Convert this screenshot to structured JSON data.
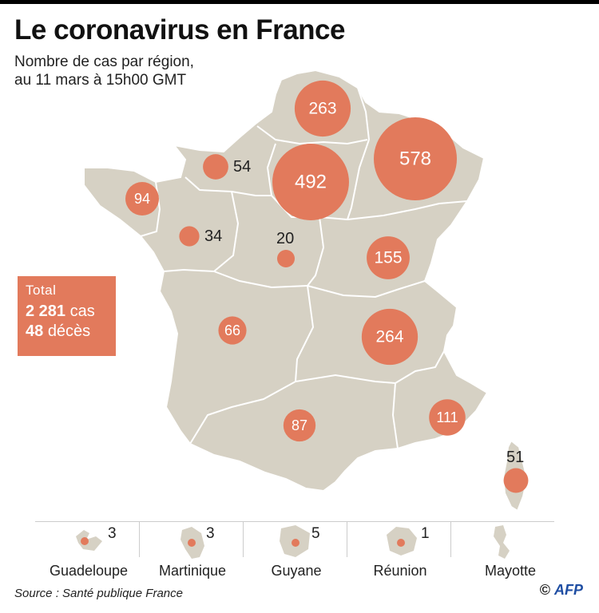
{
  "title": "Le coronavirus en France",
  "subtitle": [
    "Nombre de cas par région,",
    "au 11 mars à 15h00 GMT"
  ],
  "total": {
    "label": "Total",
    "cases_value": "2 281",
    "cases_unit": "cas",
    "deaths_value": "48",
    "deaths_unit": "décès"
  },
  "colors": {
    "bubble": "#e27a5c",
    "land": "#d6d1c4",
    "border": "#ffffff"
  },
  "regions": [
    {
      "id": "hauts-de-france",
      "cases": 263
    },
    {
      "id": "grand-est",
      "cases": 578
    },
    {
      "id": "ile-de-france",
      "cases": 492
    },
    {
      "id": "normandie",
      "cases": 54
    },
    {
      "id": "bretagne",
      "cases": 94
    },
    {
      "id": "pays-de-la-loire",
      "cases": 34
    },
    {
      "id": "centre-val-de-loire",
      "cases": 20
    },
    {
      "id": "bourgogne-franche-comte",
      "cases": 155
    },
    {
      "id": "nouvelle-aquitaine",
      "cases": 66
    },
    {
      "id": "auvergne-rhone-alpes",
      "cases": 264
    },
    {
      "id": "occitanie",
      "cases": 87
    },
    {
      "id": "provence-alpes-cote-d-azur",
      "cases": 111
    },
    {
      "id": "corse",
      "cases": 51
    }
  ],
  "overseas": [
    {
      "name": "Guadeloupe",
      "cases": "3"
    },
    {
      "name": "Martinique",
      "cases": "3"
    },
    {
      "name": "Guyane",
      "cases": "5"
    },
    {
      "name": "Réunion",
      "cases": "1"
    },
    {
      "name": "Mayotte",
      "cases": ""
    }
  ],
  "source": "Source : Santé publique France",
  "credit": {
    "symbol": "©",
    "agency": "AFP"
  }
}
